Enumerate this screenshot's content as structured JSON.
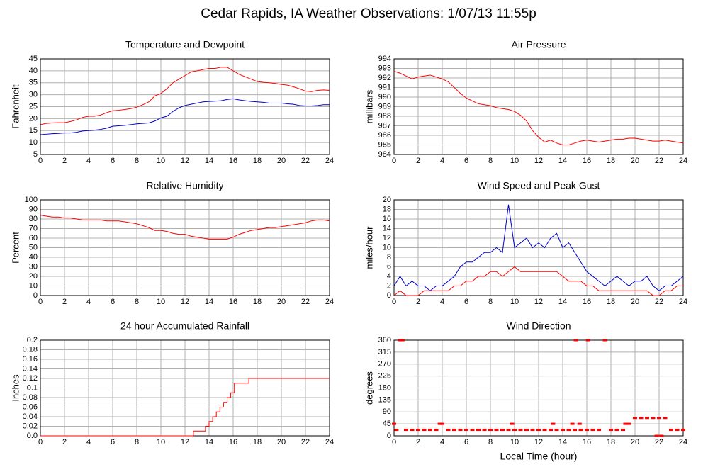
{
  "title": "Cedar Rapids, IA Weather Observations: 1/07/13 11:55p",
  "chart_data": [
    {
      "type": "line",
      "title": "Temperature and Dewpoint",
      "ylabel": "Fahrenheit",
      "xlim": [
        0,
        24
      ],
      "xticks": [
        0,
        2,
        4,
        6,
        8,
        10,
        12,
        14,
        16,
        18,
        20,
        22,
        24
      ],
      "ylim": [
        5,
        45
      ],
      "yticks": [
        5,
        10,
        15,
        20,
        25,
        30,
        35,
        40,
        45
      ],
      "grid": true,
      "x": [
        0,
        0.5,
        1,
        1.5,
        2,
        2.5,
        3,
        3.5,
        4,
        4.5,
        5,
        5.5,
        6,
        6.5,
        7,
        7.5,
        8,
        8.5,
        9,
        9.5,
        10,
        10.5,
        11,
        11.5,
        12,
        12.5,
        13,
        13.5,
        14,
        14.5,
        15,
        15.5,
        16,
        16.5,
        17,
        17.5,
        18,
        18.5,
        19,
        19.5,
        20,
        20.5,
        21,
        21.5,
        22,
        22.5,
        23,
        23.5,
        24
      ],
      "series": [
        {
          "color": "#ff0000",
          "values": [
            17.5,
            18,
            18.2,
            18.3,
            18.3,
            18.8,
            19.5,
            20.5,
            21,
            21,
            21.5,
            22.5,
            23.3,
            23.5,
            23.8,
            24.2,
            24.8,
            25.8,
            27,
            29.5,
            30.5,
            32.5,
            35,
            36.5,
            38,
            39.5,
            40,
            40.5,
            41,
            41,
            41.5,
            41.5,
            40,
            38.5,
            37.5,
            36.5,
            35.5,
            35.2,
            35,
            34.7,
            34.3,
            34,
            33.3,
            32.5,
            31.5,
            31.3,
            31.8,
            32,
            31.8
          ]
        },
        {
          "color": "#0000cc",
          "values": [
            13.3,
            13.5,
            13.7,
            13.8,
            14,
            14,
            14.3,
            14.8,
            15,
            15.2,
            15.5,
            16,
            16.8,
            17,
            17.2,
            17.5,
            17.8,
            18,
            18.2,
            19,
            20.3,
            21,
            23,
            24.5,
            25.5,
            26,
            26.5,
            27,
            27.2,
            27.3,
            27.5,
            28,
            28.3,
            27.8,
            27.5,
            27.2,
            27,
            26.8,
            26.5,
            26.5,
            26.5,
            26.2,
            26,
            25.5,
            25.3,
            25.3,
            25.5,
            25.8,
            25.8
          ]
        }
      ]
    },
    {
      "type": "line",
      "title": "Air Pressure",
      "ylabel": "millibars",
      "xlim": [
        0,
        24
      ],
      "xticks": [
        0,
        2,
        4,
        6,
        8,
        10,
        12,
        14,
        16,
        18,
        20,
        22,
        24
      ],
      "ylim": [
        984,
        994
      ],
      "yticks": [
        984,
        985,
        986,
        987,
        988,
        989,
        990,
        991,
        992,
        993,
        994
      ],
      "grid": true,
      "x": [
        0,
        0.5,
        1,
        1.5,
        2,
        2.5,
        3,
        3.5,
        4,
        4.5,
        5,
        5.5,
        6,
        6.5,
        7,
        7.5,
        8,
        8.5,
        9,
        9.5,
        10,
        10.5,
        11,
        11.5,
        12,
        12.5,
        13,
        13.5,
        14,
        14.5,
        15,
        15.5,
        16,
        16.5,
        17,
        17.5,
        18,
        18.5,
        19,
        19.5,
        20,
        20.5,
        21,
        21.5,
        22,
        22.5,
        23,
        23.5,
        24
      ],
      "series": [
        {
          "color": "#ff0000",
          "values": [
            992.7,
            992.5,
            992.2,
            991.9,
            992.1,
            992.2,
            992.3,
            992.1,
            991.9,
            991.6,
            991,
            990.4,
            989.9,
            989.6,
            989.3,
            989.2,
            989.1,
            988.9,
            988.8,
            988.7,
            988.5,
            988.1,
            987.5,
            986.5,
            985.8,
            985.3,
            985.5,
            985.2,
            985,
            985,
            985.2,
            985.4,
            985.5,
            985.4,
            985.3,
            985.4,
            985.5,
            985.6,
            985.6,
            985.7,
            985.7,
            985.6,
            985.5,
            985.4,
            985.4,
            985.5,
            985.4,
            985.3,
            985.2
          ]
        }
      ]
    },
    {
      "type": "line",
      "title": "Relative Humidity",
      "ylabel": "Percent",
      "xlim": [
        0,
        24
      ],
      "xticks": [
        0,
        2,
        4,
        6,
        8,
        10,
        12,
        14,
        16,
        18,
        20,
        22,
        24
      ],
      "ylim": [
        0,
        100
      ],
      "yticks": [
        0,
        10,
        20,
        30,
        40,
        50,
        60,
        70,
        80,
        90,
        100
      ],
      "grid": true,
      "x": [
        0,
        0.5,
        1,
        1.5,
        2,
        2.5,
        3,
        3.5,
        4,
        4.5,
        5,
        5.5,
        6,
        6.5,
        7,
        7.5,
        8,
        8.5,
        9,
        9.5,
        10,
        10.5,
        11,
        11.5,
        12,
        12.5,
        13,
        13.5,
        14,
        14.5,
        15,
        15.5,
        16,
        16.5,
        17,
        17.5,
        18,
        18.5,
        19,
        19.5,
        20,
        20.5,
        21,
        21.5,
        22,
        22.5,
        23,
        23.5,
        24
      ],
      "series": [
        {
          "color": "#ff0000",
          "values": [
            84,
            83,
            82,
            82,
            81,
            81,
            80,
            79,
            79,
            79,
            79,
            78,
            78,
            78,
            77,
            76,
            75,
            73,
            71,
            68,
            68,
            67,
            65,
            64,
            64,
            62,
            61,
            60,
            59,
            59,
            59,
            59,
            61,
            64,
            66,
            68,
            69,
            70,
            71,
            71,
            72,
            73,
            74,
            75,
            76,
            78,
            79,
            79,
            78
          ]
        }
      ]
    },
    {
      "type": "line",
      "title": "Wind Speed and Peak Gust",
      "ylabel": "miles/hour",
      "xlim": [
        0,
        24
      ],
      "xticks": [
        0,
        2,
        4,
        6,
        8,
        10,
        12,
        14,
        16,
        18,
        20,
        22,
        24
      ],
      "ylim": [
        0,
        20
      ],
      "yticks": [
        0,
        2,
        4,
        6,
        8,
        10,
        12,
        14,
        16,
        18,
        20
      ],
      "grid": true,
      "x": [
        0,
        0.5,
        1,
        1.5,
        2,
        2.5,
        3,
        3.5,
        4,
        4.5,
        5,
        5.5,
        6,
        6.5,
        7,
        7.5,
        8,
        8.5,
        9,
        9.5,
        10,
        10.5,
        11,
        11.5,
        12,
        12.5,
        13,
        13.5,
        14,
        14.5,
        15,
        15.5,
        16,
        16.5,
        17,
        17.5,
        18,
        18.5,
        19,
        19.5,
        20,
        20.5,
        21,
        21.5,
        22,
        22.5,
        23,
        23.5,
        24
      ],
      "series": [
        {
          "color": "#0000cc",
          "values": [
            2,
            4,
            2,
            3,
            2,
            2,
            1,
            2,
            2,
            3,
            4,
            6,
            7,
            7,
            8,
            9,
            9,
            10,
            9,
            19,
            10,
            11,
            12,
            10,
            11,
            10,
            12,
            13,
            10,
            11,
            9,
            7,
            5,
            4,
            3,
            2,
            3,
            4,
            3,
            2,
            3,
            3,
            4,
            2,
            1,
            2,
            2,
            3,
            4
          ]
        },
        {
          "color": "#ff0000",
          "values": [
            0,
            1,
            0,
            0,
            0,
            1,
            1,
            1,
            1,
            1,
            2,
            2,
            3,
            3,
            4,
            4,
            5,
            5,
            4,
            5,
            6,
            5,
            5,
            5,
            5,
            5,
            5,
            5,
            4,
            3,
            3,
            3,
            2,
            2,
            1,
            1,
            1,
            1,
            1,
            1,
            1,
            1,
            1,
            0,
            0,
            1,
            1,
            2,
            2
          ]
        }
      ]
    },
    {
      "type": "line",
      "drawstyle": "steps-post",
      "title": "24 hour Accumulated Rainfall",
      "ylabel": "Inches",
      "xlim": [
        0,
        24
      ],
      "xticks": [
        0,
        2,
        4,
        6,
        8,
        10,
        12,
        14,
        16,
        18,
        20,
        22,
        24
      ],
      "ylim": [
        0,
        0.2
      ],
      "yticks": [
        {
          "value": 0,
          "label": "0.0"
        },
        0.02,
        0.04,
        0.06,
        0.08,
        0.1,
        0.12,
        0.14,
        0.16,
        0.18,
        0.2
      ],
      "grid": true,
      "x": [
        0,
        12.7,
        13.7,
        14,
        14.3,
        14.6,
        14.9,
        15.2,
        15.5,
        15.8,
        16.1,
        17.3,
        24
      ],
      "series": [
        {
          "color": "#ff0000",
          "values": [
            0,
            0.01,
            0.02,
            0.03,
            0.04,
            0.05,
            0.06,
            0.07,
            0.08,
            0.09,
            0.11,
            0.12,
            0.12
          ]
        }
      ]
    },
    {
      "type": "scatter",
      "title": "Wind Direction",
      "ylabel": "degrees",
      "xlabel": "Local Time (hour)",
      "xlim": [
        0,
        24
      ],
      "xticks": [
        0,
        2,
        4,
        6,
        8,
        10,
        12,
        14,
        16,
        18,
        20,
        22,
        24
      ],
      "ylim": [
        0,
        360
      ],
      "yticks": [
        0,
        45,
        90,
        135,
        180,
        225,
        270,
        315,
        360
      ],
      "grid": true,
      "x": [
        0,
        0.2,
        0.5,
        0.7,
        1,
        1.5,
        2,
        2.5,
        3,
        3.5,
        3.8,
        4,
        4.5,
        5,
        5.5,
        6,
        6.5,
        7,
        7.5,
        8,
        8.5,
        9,
        9.5,
        9.8,
        10,
        10.5,
        11,
        11.5,
        12,
        12.5,
        13,
        13.2,
        13.5,
        14,
        14.5,
        14.8,
        15,
        15.1,
        15.4,
        15.5,
        16,
        16.1,
        16.5,
        17,
        17.5,
        18,
        18.5,
        19,
        19.2,
        19.5,
        20,
        20.5,
        21,
        21.5,
        21.8,
        22,
        22.2,
        22.5,
        23,
        23.5,
        24
      ],
      "series": [
        {
          "color": "#ff0000",
          "values": [
            45,
            22.5,
            360,
            360,
            22.5,
            22.5,
            22.5,
            22.5,
            22.5,
            22.5,
            45,
            45,
            22.5,
            22.5,
            22.5,
            22.5,
            22.5,
            22.5,
            22.5,
            22.5,
            22.5,
            22.5,
            22.5,
            45,
            22.5,
            22.5,
            22.5,
            22.5,
            22.5,
            22.5,
            22.5,
            45,
            22.5,
            22.5,
            22.5,
            45,
            22.5,
            360,
            45,
            22.5,
            22.5,
            360,
            22.5,
            22.5,
            360,
            22.5,
            22.5,
            22.5,
            45,
            45,
            67.5,
            67.5,
            67.5,
            67.5,
            0,
            67.5,
            0,
            67.5,
            22.5,
            22.5,
            22.5
          ]
        }
      ]
    }
  ]
}
